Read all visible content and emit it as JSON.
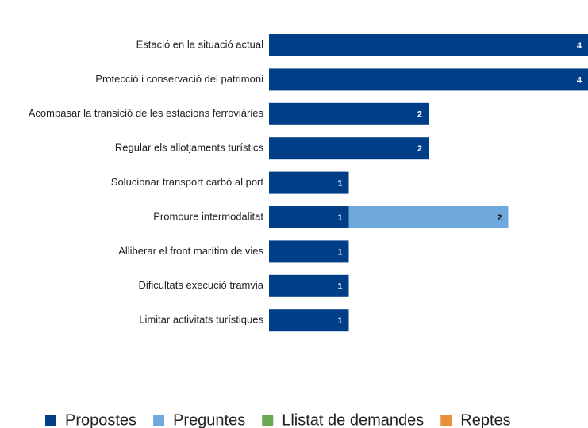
{
  "chart_data": {
    "type": "stacked-barh",
    "categories": [
      "Estació en la situació actual",
      "Protecció i conservació del patrimoni",
      "Acompasar la transició de les estacions ferroviàries",
      "Regular els allotjaments turístics",
      "Solucionar transport carbó al port",
      "Promoure intermodalitat",
      "Alliberar el front marítim de vies",
      "Dificultats execució tramvia",
      "Limitar activitats turístiques"
    ],
    "series": [
      {
        "name": "Propostes",
        "color": "#003f87",
        "values": [
          4,
          4,
          2,
          2,
          1,
          1,
          1,
          1,
          1
        ]
      },
      {
        "name": "Preguntes",
        "color": "#6fa8dc",
        "values": [
          0,
          0,
          0,
          0,
          0,
          2,
          0,
          0,
          0
        ]
      },
      {
        "name": "Llistat de demandes",
        "color": "#6aa84f",
        "values": [
          0,
          0,
          0,
          0,
          0,
          0,
          0,
          0,
          0
        ]
      },
      {
        "name": "Reptes",
        "color": "#e69138",
        "values": [
          0,
          0,
          0,
          0,
          0,
          0,
          0,
          0,
          0
        ]
      }
    ],
    "xlim": [
      0,
      4
    ],
    "legend": "bottom"
  }
}
